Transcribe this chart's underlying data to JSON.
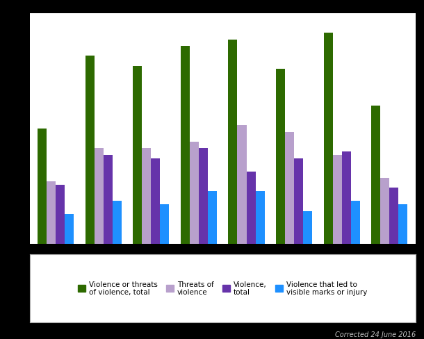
{
  "series": [
    {
      "label": "Violence or threats\nof violence, total",
      "color": "#2d6a00",
      "values": [
        35,
        57,
        54,
        60,
        62,
        53,
        64,
        42
      ]
    },
    {
      "label": "Threats of\nviolence",
      "color": "#b8a0cc",
      "values": [
        19,
        29,
        29,
        31,
        36,
        34,
        27,
        20
      ]
    },
    {
      "label": "Violence,\ntotal",
      "color": "#6633aa",
      "values": [
        18,
        27,
        26,
        29,
        22,
        26,
        28,
        17
      ]
    },
    {
      "label": "Violence that led to\nvisible marks or injury",
      "color": "#1e90ff",
      "values": [
        9,
        13,
        12,
        16,
        16,
        10,
        13,
        12
      ]
    }
  ],
  "n_groups": 8,
  "ylim": [
    0,
    70
  ],
  "plot_bg": "#ffffff",
  "fig_bg": "#000000",
  "grid_color": "#d0d0d0",
  "bar_width": 0.19,
  "note": "Corrected 24 June 2016",
  "note_color": "#c0c0c0"
}
